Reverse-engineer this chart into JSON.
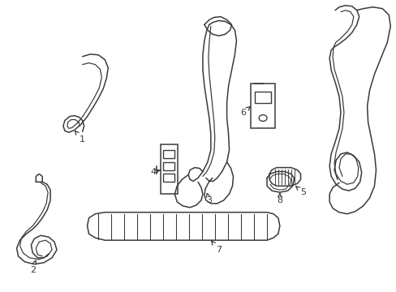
{
  "background_color": "#ffffff",
  "line_color": "#3a3a3a",
  "line_width": 1.1,
  "label_fontsize": 8.0,
  "figw": 4.89,
  "figh": 3.6,
  "dpi": 100
}
